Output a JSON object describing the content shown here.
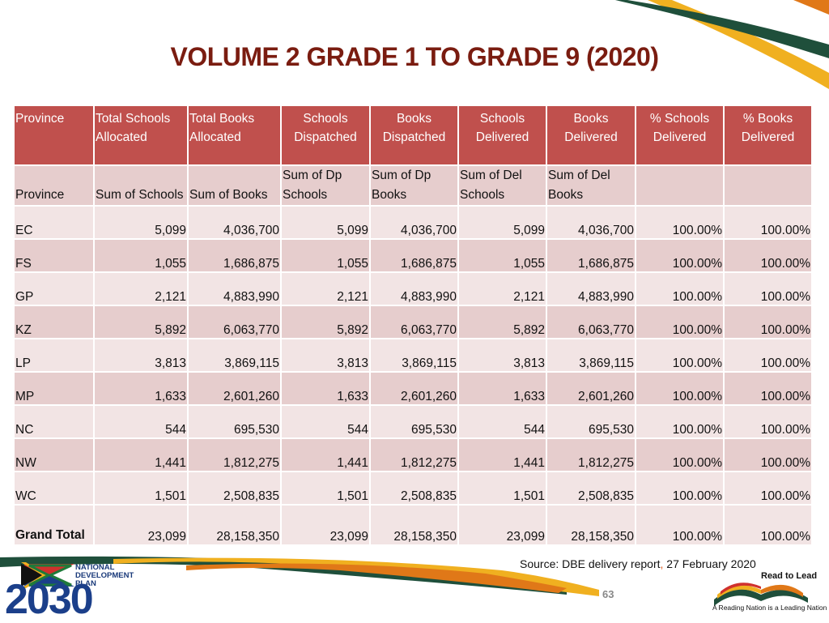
{
  "title": "VOLUME 2 GRADE 1 TO GRADE 9 (2020)",
  "table": {
    "headers": [
      "Province",
      "Total Schools Allocated",
      "Total Books Allocated",
      "Schools Dispatched",
      "Books Dispatched",
      "Schools Delivered",
      "Books Delivered",
      "% Schools Delivered",
      "% Books Delivered"
    ],
    "subheaders": [
      "Province",
      "Sum of Schools",
      "Sum of Books",
      "Sum of Dp Schools",
      "Sum of Dp Books",
      "Sum of Del Schools",
      "Sum of Del Books",
      "",
      ""
    ],
    "rows": [
      [
        "EC",
        "5,099",
        "4,036,700",
        "5,099",
        "4,036,700",
        "5,099",
        "4,036,700",
        "100.00%",
        "100.00%"
      ],
      [
        "FS",
        "1,055",
        "1,686,875",
        "1,055",
        "1,686,875",
        "1,055",
        "1,686,875",
        "100.00%",
        "100.00%"
      ],
      [
        "GP",
        "2,121",
        "4,883,990",
        "2,121",
        "4,883,990",
        "2,121",
        "4,883,990",
        "100.00%",
        "100.00%"
      ],
      [
        "KZ",
        "5,892",
        "6,063,770",
        "5,892",
        "6,063,770",
        "5,892",
        "6,063,770",
        "100.00%",
        "100.00%"
      ],
      [
        "LP",
        "3,813",
        "3,869,115",
        "3,813",
        "3,869,115",
        "3,813",
        "3,869,115",
        "100.00%",
        "100.00%"
      ],
      [
        "MP",
        "1,633",
        "2,601,260",
        "1,633",
        "2,601,260",
        "1,633",
        "2,601,260",
        "100.00%",
        "100.00%"
      ],
      [
        "NC",
        "544",
        "695,530",
        "544",
        "695,530",
        "544",
        "695,530",
        "100.00%",
        "100.00%"
      ],
      [
        "NW",
        "1,441",
        "1,812,275",
        "1,441",
        "1,812,275",
        "1,441",
        "1,812,275",
        "100.00%",
        "100.00%"
      ],
      [
        "WC",
        "1,501",
        "2,508,835",
        "1,501",
        "2,508,835",
        "1,501",
        "2,508,835",
        "100.00%",
        "100.00%"
      ]
    ],
    "total": [
      "Grand Total",
      "23,099",
      "28,158,350",
      "23,099",
      "28,158,350",
      "23,099",
      "28,158,350",
      "100.00%",
      "100.00%"
    ]
  },
  "source": {
    "prefix": "Source: DBE delivery report",
    "comma": ",",
    "suffix": " 27 February 2020"
  },
  "page_number": "63",
  "logo_ndp": {
    "line1": "NATIONAL",
    "line2": "DEVELOPMENT",
    "line3": "PLAN",
    "year": "2030"
  },
  "logo_rtl": {
    "title": "Read to Lead",
    "tagline": "A Reading Nation is a Leading Nation"
  },
  "colors": {
    "title": "#7a1c10",
    "header_bg": "#c0504d",
    "row_light": "#f2e4e4",
    "row_dark": "#e6cdcd",
    "ribbon_gold": "#f0b020",
    "ribbon_orange": "#e07818",
    "ribbon_green": "#1f4f3b"
  }
}
